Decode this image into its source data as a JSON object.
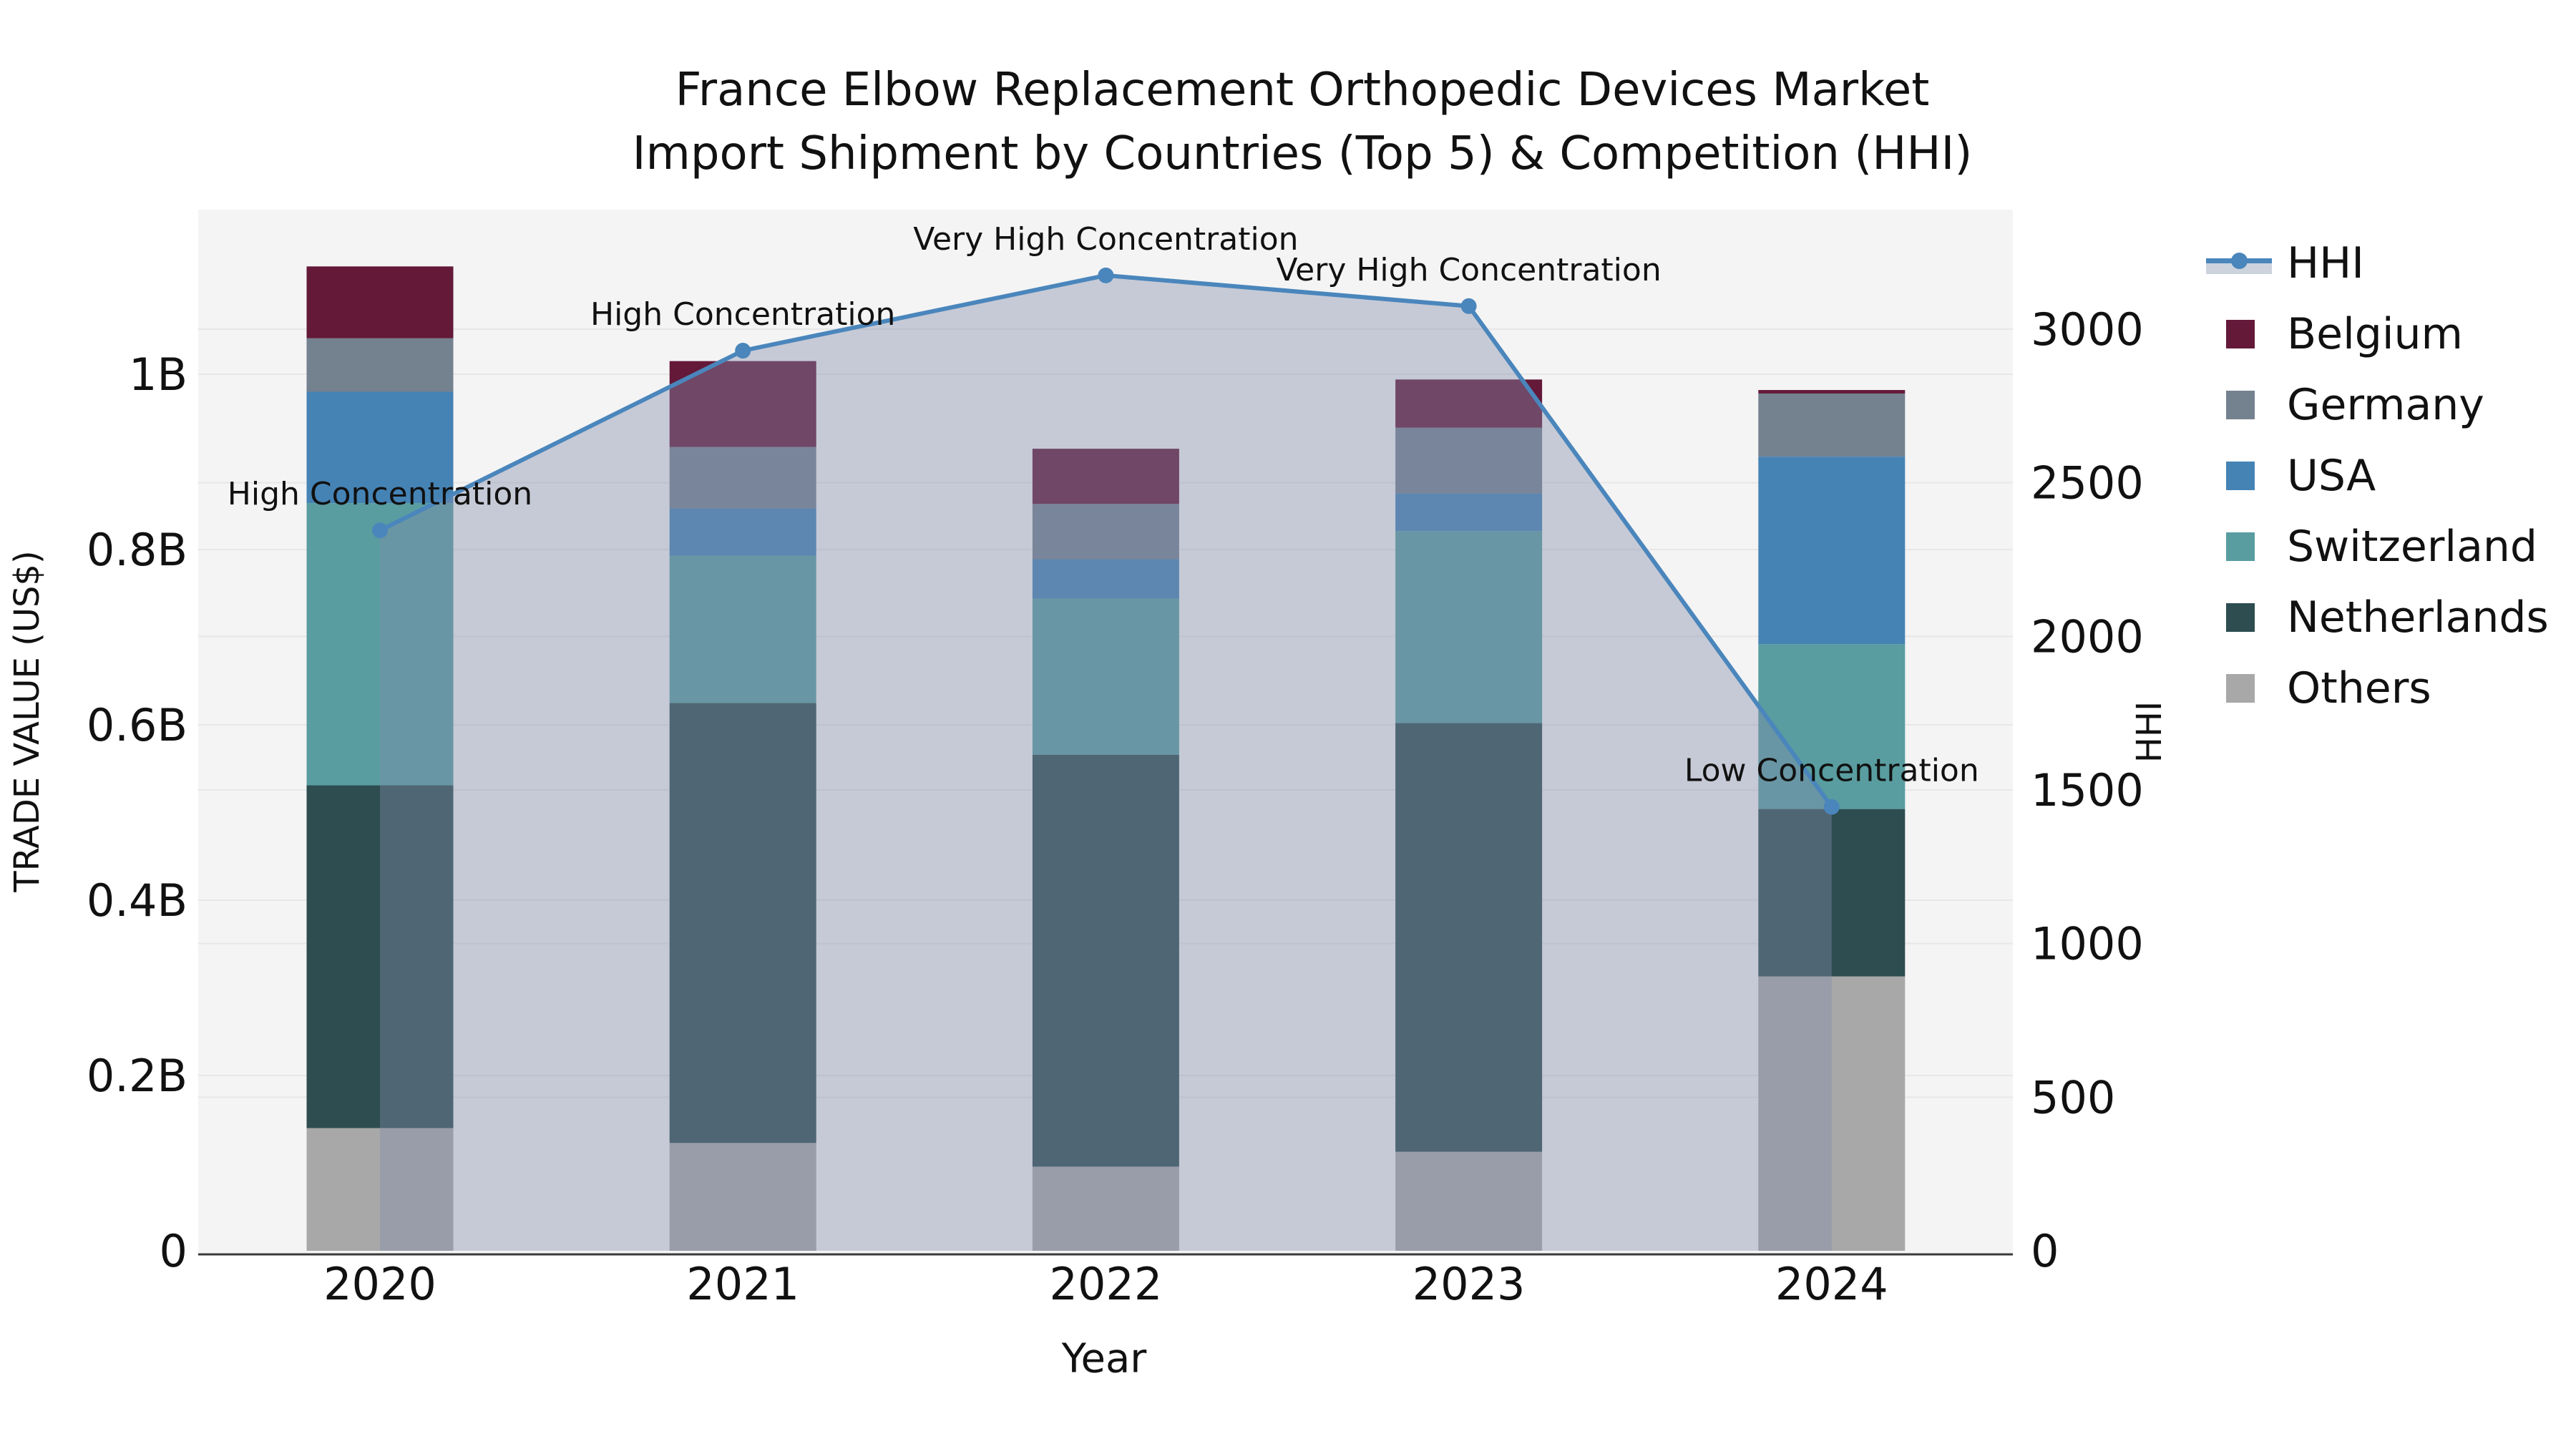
{
  "title": {
    "line1": "France Elbow Replacement Orthopedic Devices Market",
    "line2": "Import Shipment by Countries (Top 5) & Competition (HHI)"
  },
  "axes": {
    "x_label": "Year",
    "y_left_label": "TRADE VALUE (US$)",
    "y_right_label": "HHI",
    "y_left_ticks": [
      {
        "label": "0",
        "value": 0.0
      },
      {
        "label": "0.2B",
        "value": 0.2
      },
      {
        "label": "0.4B",
        "value": 0.4
      },
      {
        "label": "0.6B",
        "value": 0.6
      },
      {
        "label": "0.8B",
        "value": 0.8
      },
      {
        "label": "1B",
        "value": 1.0
      }
    ],
    "y_right_ticks": [
      {
        "label": "0",
        "value": 0
      },
      {
        "label": "500",
        "value": 500
      },
      {
        "label": "1000",
        "value": 1000
      },
      {
        "label": "1500",
        "value": 1500
      },
      {
        "label": "2000",
        "value": 2000
      },
      {
        "label": "2500",
        "value": 2500
      },
      {
        "label": "3000",
        "value": 3000
      }
    ]
  },
  "colors": {
    "plot_background": "#f4f4f4",
    "gridline": "#e7e7e7",
    "axis_spine": "#3a3a3a",
    "hhi_line": "#4a86bc",
    "hhi_area_fill": "rgba(130,140,170,0.40)",
    "hhi_legend_band": "#ccd3dd",
    "text": "#111111"
  },
  "chart_data": {
    "type": "bar",
    "subtype": "stacked-bar-with-line",
    "categories": [
      "2020",
      "2021",
      "2022",
      "2023",
      "2024"
    ],
    "value_unit": "US$ billions",
    "ylim_left": [
      0,
      1.19
    ],
    "ylim_right": [
      0,
      3325
    ],
    "grid": true,
    "series": [
      {
        "name": "Others",
        "color": "#a8a8a8",
        "values": [
          0.14,
          0.123,
          0.096,
          0.113,
          0.313
        ]
      },
      {
        "name": "Netherlands",
        "color": "#2d4d50",
        "values": [
          0.391,
          0.502,
          0.47,
          0.489,
          0.191
        ]
      },
      {
        "name": "Switzerland",
        "color": "#599da0",
        "values": [
          0.322,
          0.168,
          0.178,
          0.219,
          0.188
        ]
      },
      {
        "name": "USA",
        "color": "#4583b5",
        "values": [
          0.127,
          0.054,
          0.045,
          0.043,
          0.214
        ]
      },
      {
        "name": "Germany",
        "color": "#74818f",
        "values": [
          0.061,
          0.07,
          0.063,
          0.075,
          0.072
        ]
      },
      {
        "name": "Belgium",
        "color": "#641939",
        "values": [
          0.082,
          0.098,
          0.063,
          0.055,
          0.004
        ]
      }
    ],
    "stack_totals": [
      1.123,
      1.015,
      0.915,
      0.994,
      0.982
    ],
    "line_series": {
      "name": "HHI",
      "axis": "right",
      "values": [
        2345,
        2930,
        3175,
        3075,
        1445
      ]
    },
    "annotations": [
      {
        "year": "2020",
        "text": "High Concentration"
      },
      {
        "year": "2021",
        "text": "High Concentration"
      },
      {
        "year": "2022",
        "text": "Very High Concentration"
      },
      {
        "year": "2023",
        "text": "Very High Concentration"
      },
      {
        "year": "2024",
        "text": "Low Concentration"
      }
    ]
  },
  "legend": {
    "items": [
      {
        "id": "hhi",
        "label": "HHI",
        "type": "line",
        "color": "#4a86bc"
      },
      {
        "id": "belgium",
        "label": "Belgium",
        "type": "patch",
        "color": "#641939"
      },
      {
        "id": "germany",
        "label": "Germany",
        "type": "patch",
        "color": "#74818f"
      },
      {
        "id": "usa",
        "label": "USA",
        "type": "patch",
        "color": "#4583b5"
      },
      {
        "id": "switzerland",
        "label": "Switzerland",
        "type": "patch",
        "color": "#599da0"
      },
      {
        "id": "netherlands",
        "label": "Netherlands",
        "type": "patch",
        "color": "#2d4d50"
      },
      {
        "id": "others",
        "label": "Others",
        "type": "patch",
        "color": "#a8a8a8"
      }
    ]
  }
}
